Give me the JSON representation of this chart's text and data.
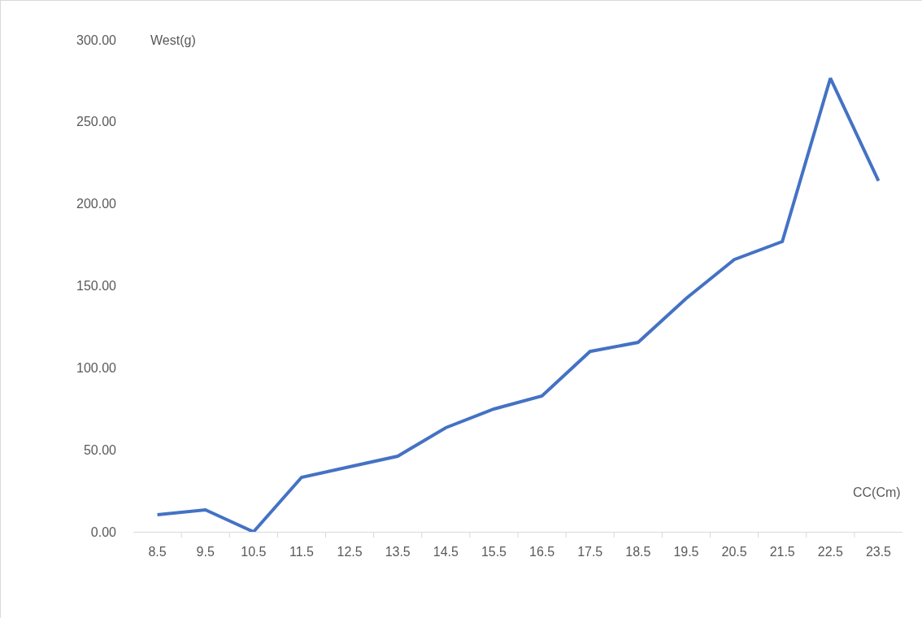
{
  "chart_data": {
    "type": "line",
    "xlabel": "CC(Cm)",
    "ylabel": "West(g)",
    "categories": [
      "8.5",
      "9.5",
      "10.5",
      "11.5",
      "12.5",
      "13.5",
      "14.5",
      "15.5",
      "16.5",
      "17.5",
      "18.5",
      "19.5",
      "20.5",
      "21.5",
      "22.5",
      "23.5"
    ],
    "series": [
      {
        "color": "#4472c4",
        "values": [
          10.4,
          13.4,
          0,
          33.2,
          39.7,
          46.1,
          63.5,
          74.9,
          82.8,
          110,
          115.5,
          142.3,
          166,
          177,
          276.6,
          214
        ]
      }
    ],
    "ylim": [
      0,
      300
    ],
    "yticks": [
      {
        "value": 0,
        "label": "0.00"
      },
      {
        "value": 50,
        "label": "50.00"
      },
      {
        "value": 100,
        "label": "100.00"
      },
      {
        "value": 150,
        "label": "150.00"
      },
      {
        "value": 200,
        "label": "200.00"
      },
      {
        "value": 250,
        "label": "250.00"
      },
      {
        "value": 300,
        "label": "300.00"
      }
    ],
    "grid": false,
    "marker": "none",
    "line_style": "solid"
  }
}
